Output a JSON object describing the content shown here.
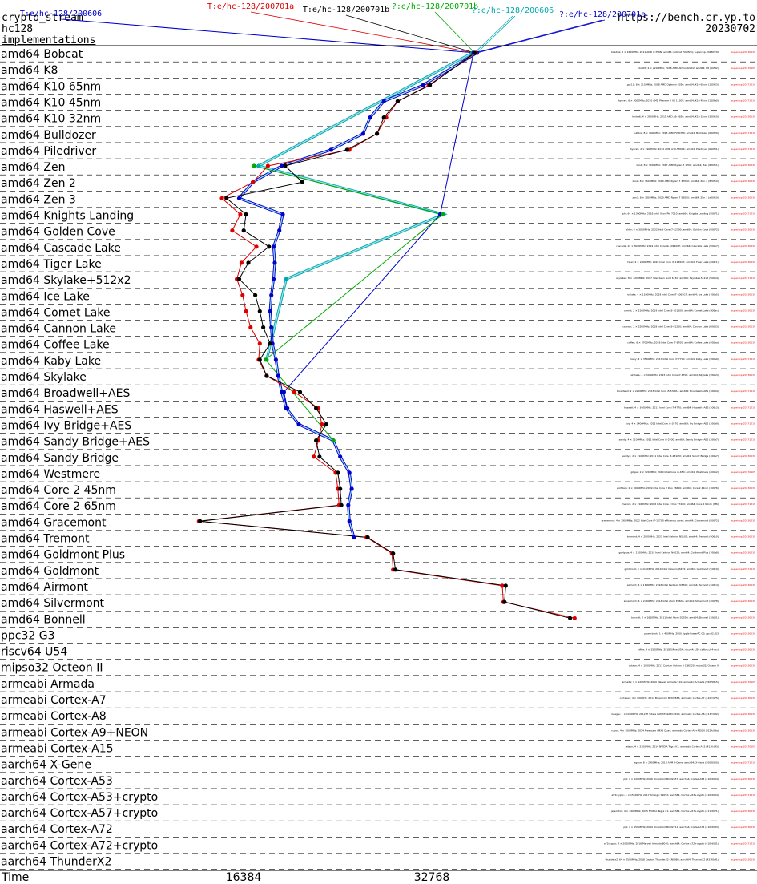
{
  "header": {
    "primitive": "crypto_stream",
    "algorithm": "hc128",
    "section": "implementations",
    "site": "https://bench.cr.yp.to",
    "date": "20230702"
  },
  "implementations": [
    {
      "label": "T:e/hc-128/200606",
      "color": "#0000cc"
    },
    {
      "label": "T:e/hc-128/200701a",
      "color": "#dd0000"
    },
    {
      "label": "T:e/hc-128/200701b",
      "color": "#000000"
    },
    {
      "label": "?:e/hc-128/200701b",
      "color": "#00aa00"
    },
    {
      "label": "?:e/hc-128/200606",
      "color": "#00aaaa"
    },
    {
      "label": "?:e/hc-128/200701a",
      "color": "#0000cc"
    }
  ],
  "axis": {
    "xlabel": "Time",
    "ticks": [
      "16384",
      "32768"
    ]
  },
  "chart_data": {
    "type": "line",
    "xlabel": "Time",
    "xticks": [
      16384,
      32768
    ],
    "categories": [
      "amd64 Bobcat",
      "amd64 K8",
      "amd64 K10 65nm",
      "amd64 K10 45nm",
      "amd64 K10 32nm",
      "amd64 Bulldozer",
      "amd64 Piledriver",
      "amd64 Zen",
      "amd64 Zen 2",
      "amd64 Zen 3",
      "amd64 Knights Landing",
      "amd64 Golden Cove",
      "amd64 Cascade Lake",
      "amd64 Tiger Lake",
      "amd64 Skylake+512x2",
      "amd64 Ice Lake",
      "amd64 Comet Lake",
      "amd64 Cannon Lake",
      "amd64 Coffee Lake",
      "amd64 Kaby Lake",
      "amd64 Skylake",
      "amd64 Broadwell+AES",
      "amd64 Haswell+AES",
      "amd64 Ivy Bridge+AES",
      "amd64 Sandy Bridge+AES",
      "amd64 Sandy Bridge",
      "amd64 Westmere",
      "amd64 Core 2 45nm",
      "amd64 Core 2 65nm",
      "amd64 Gracemont",
      "amd64 Tremont",
      "amd64 Goldmont Plus",
      "amd64 Goldmont",
      "amd64 Airmont",
      "amd64 Silvermont",
      "amd64 Bonnell",
      "ppc32 G3",
      "riscv64 U54",
      "mipso32 Octeon II",
      "armeabi Armada",
      "armeabi Cortex-A7",
      "armeabi Cortex-A8",
      "armeabi Cortex-A9+NEON",
      "armeabi Cortex-A15",
      "aarch64 X-Gene",
      "aarch64 Cortex-A53",
      "aarch64 Cortex-A53+crypto",
      "aarch64 Cortex-A57+crypto",
      "aarch64 Cortex-A72",
      "aarch64 Cortex-A72+crypto",
      "aarch64 ThunderX2"
    ],
    "series": [
      {
        "name": "T:e/hc-128/200606",
        "color": "#0000cc",
        "points": [
          [
            0,
            36700
          ],
          [
            2,
            32000
          ],
          [
            3,
            28600
          ],
          [
            4,
            27400
          ],
          [
            5,
            26800
          ],
          [
            6,
            24000
          ],
          [
            7,
            19700
          ],
          [
            8,
            17200
          ],
          [
            9,
            16000
          ],
          [
            10,
            19800
          ],
          [
            11,
            19500
          ],
          [
            12,
            19000
          ],
          [
            13,
            19100
          ],
          [
            14,
            19000
          ],
          [
            15,
            18800
          ],
          [
            16,
            18700
          ],
          [
            17,
            18800
          ],
          [
            18,
            18900
          ],
          [
            19,
            19200
          ],
          [
            20,
            19400
          ],
          [
            21,
            19700
          ],
          [
            22,
            20100
          ],
          [
            23,
            21200
          ],
          [
            24,
            24200
          ],
          [
            25,
            24800
          ],
          [
            26,
            25600
          ],
          [
            27,
            25800
          ],
          [
            28,
            25500
          ],
          [
            29,
            25600
          ],
          [
            30,
            26000
          ]
        ]
      },
      {
        "name": "T:e/hc-128/200701a",
        "color": "#dd0000",
        "points": [
          [
            0,
            36600
          ],
          [
            2,
            32500
          ],
          [
            3,
            29800
          ],
          [
            4,
            28800
          ],
          [
            5,
            28000
          ],
          [
            6,
            25600
          ],
          [
            7,
            18500
          ],
          [
            8,
            17200
          ],
          [
            9,
            14500
          ],
          [
            10,
            16100
          ],
          [
            11,
            15400
          ],
          [
            12,
            17500
          ],
          [
            13,
            16200
          ],
          [
            14,
            15800
          ],
          [
            15,
            16300
          ],
          [
            16,
            16600
          ],
          [
            17,
            17000
          ],
          [
            18,
            17800
          ],
          [
            19,
            17700
          ],
          [
            20,
            18400
          ],
          [
            21,
            20800
          ],
          [
            22,
            22900
          ],
          [
            23,
            23200
          ],
          [
            24,
            22900
          ],
          [
            25,
            22500
          ],
          [
            26,
            24400
          ],
          [
            27,
            24600
          ],
          [
            28,
            24700
          ],
          [
            29,
            12500
          ],
          [
            30,
            27100
          ],
          [
            31,
            29300
          ],
          [
            32,
            29400
          ],
          [
            33,
            38900
          ],
          [
            34,
            39000
          ],
          [
            35,
            45200
          ]
        ]
      },
      {
        "name": "T:e/hc-128/200701b",
        "color": "#000000",
        "points": [
          [
            0,
            36500
          ],
          [
            2,
            32600
          ],
          [
            3,
            29800
          ],
          [
            4,
            28600
          ],
          [
            5,
            28000
          ],
          [
            6,
            25400
          ],
          [
            7,
            20000
          ],
          [
            8,
            21500
          ],
          [
            9,
            14900
          ],
          [
            10,
            16600
          ],
          [
            11,
            16400
          ],
          [
            12,
            18600
          ],
          [
            13,
            16800
          ],
          [
            14,
            16000
          ],
          [
            15,
            17400
          ],
          [
            16,
            17800
          ],
          [
            17,
            18100
          ],
          [
            18,
            18700
          ],
          [
            19,
            17800
          ],
          [
            20,
            18400
          ],
          [
            21,
            21300
          ],
          [
            22,
            22700
          ],
          [
            23,
            23600
          ],
          [
            24,
            22700
          ],
          [
            25,
            23000
          ],
          [
            26,
            24600
          ],
          [
            27,
            24800
          ],
          [
            28,
            24900
          ],
          [
            29,
            12600
          ],
          [
            30,
            27200
          ],
          [
            31,
            29400
          ],
          [
            32,
            29600
          ],
          [
            33,
            39200
          ],
          [
            34,
            39100
          ],
          [
            35,
            44800
          ]
        ]
      },
      {
        "name": "?:e/hc-128/200701b",
        "color": "#00aa00",
        "points": [
          [
            7,
            17300
          ],
          [
            10,
            33700
          ],
          [
            19,
            18300
          ],
          [
            24,
            24200
          ]
        ]
      },
      {
        "name": "?:e/hc-128/200606",
        "color": "#00aaaa",
        "points": [
          [
            0,
            36300
          ],
          [
            7,
            17700
          ],
          [
            10,
            33800
          ],
          [
            14,
            20100
          ],
          [
            19,
            18400
          ]
        ]
      },
      {
        "name": "?:e/hc-128/200701a",
        "color": "#0000cc",
        "points": [
          [
            0,
            36400
          ],
          [
            10,
            33500
          ],
          [
            21,
            19900
          ],
          [
            22,
            20200
          ]
        ]
      }
    ]
  },
  "machines": [
    {
      "text": "bllsdisk; 2 × 1600MHz; 2011 AMD G-T56N; amd64; Bobcat (500f20); supercop-20230530",
      "date": "supercop-20230530"
    },
    {
      "text": "nbi403; 2 × 2200MHz; 2008 AMD Athlon 64 X2; amd64; K8 (60f82)",
      "date": "supercop-20170105"
    },
    {
      "text": "gcc10; 8 × 2100MHz; 2008 AMD Opteron 8356; amd64; K10 65nm (100f23)",
      "date": "supercop-20171218"
    },
    {
      "text": "hydra4; 6 × 3000MHz; 2010 AMD Phenom II X6 1100T; amd64; K10 45nm (100fa0)",
      "date": "supercop-20171218"
    },
    {
      "text": "hydra6; 4 × 2600MHz; 2011 AMD A6-3650; amd64; K10 32nm (300f10)",
      "date": "supercop-20230530"
    },
    {
      "text": "bulldoz; 8 × 4000MHz; 2013 AMD FX-8350; amd64; Bulldozer (600f20)",
      "date": "supercop-20171218"
    },
    {
      "text": "hydra8; 2 × 3900MHz; 2012 AMD A10-5800K; amd64; Piledriver (610f01)",
      "date": "supercop-20171218"
    },
    {
      "text": "zen1; 8 × 3000MHz; 2017 AMD Ryzen 7 1700; amd64; Zen (800f11)",
      "date": "supercop-20230530"
    },
    {
      "text": "zen2; 8 × 3600MHz; 2019 AMD Ryzen 7 3700X; amd64; Zen 2 (870f10)",
      "date": "supercop-20230530"
    },
    {
      "text": "zen3; 8 × 3800MHz; 2020 AMD Ryzen 7 5800X; amd64; Zen 3 (a20f10)",
      "date": "supercop-20230530"
    },
    {
      "text": "phi; 64 × 1300MHz; 2016 Intel Xeon Phi 7210; amd64; Knights Landing (50671)",
      "date": "supercop-20171218"
    },
    {
      "text": "alder; 4 × 3000MHz; 2022 Intel Core i7-12700; amd64; Golden Cove (90672)",
      "date": "supercop-20230530"
    },
    {
      "text": "cascade; 18 × 3000MHz; 2019 Intel Core i9-10980XE; amd64; Cascade Lake (50657)",
      "date": "supercop-20230530"
    },
    {
      "text": "tiger; 4 × 2800MHz; 2020 Intel Core i7-1165G7; amd64; Tiger Lake (806c1)",
      "date": "supercop-20230530"
    },
    {
      "text": "skylakex; 8 × 3200MHz; 2017 Intel Xeon Gold 6130; amd64; Skylake+512x2 (50654)",
      "date": "supercop-20171218"
    },
    {
      "text": "icelake; 4 × 1100MHz; 2019 Intel Core i7-1065G7; amd64; Ice Lake (706e5)",
      "date": "supercop-20230530"
    },
    {
      "text": "comet; 2 × 2100MHz; 2019 Intel Core i3-10110U; amd64; Comet Lake (806ec)",
      "date": "supercop-20230530"
    },
    {
      "text": "cannon; 2 × 2200MHz; 2018 Intel Core i3-8121U; amd64; Cannon Lake (60663)",
      "date": "supercop-20230530"
    },
    {
      "text": "coffee; 6 × 3700MHz; 2018 Intel Core i7-8700; amd64; Coffee Lake (906ea)",
      "date": "supercop-20230530"
    },
    {
      "text": "kaby; 4 × 3500MHz; 2017 Intel Core i7-7700; amd64; Kaby Lake (906e9)",
      "date": "supercop-20171218"
    },
    {
      "text": "skylake; 4 × 3400MHz; 2015 Intel Core i7-6700; amd64; Skylake (506e3)",
      "date": "supercop-20230530"
    },
    {
      "text": "broadwell; 2 × 2200MHz; 2015 Intel Core i5-5300U; amd64; Broadwell+AES (306d4)",
      "date": "supercop-20171218"
    },
    {
      "text": "haswell; 4 × 3400MHz; 2013 Intel Core i7-4770; amd64; Haswell+AES (306c3)",
      "date": "supercop-20171218"
    },
    {
      "text": "ivy; 4 × 3400MHz; 2012 Intel Core i5-3570; amd64; Ivy Bridge+AES (306a9)",
      "date": "supercop-20171218"
    },
    {
      "text": "sandy; 4 × 3100MHz; 2011 Intel Core i5-2400; amd64; Sandy Bridge+AES (206a7)",
      "date": "supercop-20171218"
    },
    {
      "text": "sandy2; 2 × 2100MHz; 2011 Intel Core i3-2310M; amd64; Sandy Bridge (206a7)",
      "date": "supercop-20230530"
    },
    {
      "text": "gilgax; 2 × 3200MHz; 2010 Intel Core i5-650; amd64; Westmere (20652)",
      "date": "supercop-20170105"
    },
    {
      "text": "wolfdale; 2 × 3000MHz; 2009 Intel Core 2 Duo E8400; amd64; Core 2 45nm (10676)",
      "date": "supercop-20230530"
    },
    {
      "text": "merom; 2 × 2160MHz; 2006 Intel Core 2 Duo T7400; amd64; Core 2 65nm (6f6)",
      "date": "supercop-20171218"
    },
    {
      "text": "gracemont; 4 × 1900MHz; 2022 Intel Core i7-12700 efficiency cores; amd64; Gracemont (90672)",
      "date": "supercop-20230530"
    },
    {
      "text": "tremont; 4 × 2000MHz; 2021 Intel Celeron N5105; amd64; Tremont (906c0)",
      "date": "supercop-20230530"
    },
    {
      "text": "goldplus; 4 × 1100MHz; 2019 Intel Celeron N4020; amd64; Goldmont Plus (706a8)",
      "date": "supercop-20230530"
    },
    {
      "text": "goldmont; 4 × 1100MHz; 2016 Intel Celeron J3455; amd64; Goldmont (506c9)",
      "date": "supercop-20171218"
    },
    {
      "text": "airmont; 4 × 1600MHz; 2016 Intel Pentium N3700; amd64; Airmont (406c4)",
      "date": "supercop-20230530"
    },
    {
      "text": "silvermont; 4 × 2400MHz; 2014 Intel Atom E3845; amd64; Silvermont (30678)",
      "date": "supercop-20230530"
    },
    {
      "text": "bonnell; 2 × 1660MHz; 2011 Intel Atom D2550; amd64; Bonnell (30661)",
      "date": "supercop-20230530"
    },
    {
      "text": "powerbook; 1 × 400MHz; 2000 Apple PowerPC G3; ppc32; G3",
      "date": "supercop-20230530"
    },
    {
      "text": "hifive; 4 × 1500MHz; 2018 SiFive U54; riscv64; U54 (sifive,u54-mc)",
      "date": "supercop-20230530"
    },
    {
      "text": "octeon; 4 × 1000MHz; 2011 Cavium Octeon II CN6120; mipso32; Octeon II",
      "date": "supercop-20230530"
    },
    {
      "text": "armada; 1 × 1200MHz; 2010 Marvell Armada 510; armeabi; Armada (560f5815)",
      "date": "supercop-20170105"
    },
    {
      "text": "cortexa7; 4 × 900MHz; 2014 Broadcom BCM2836; armeabi; Cortex-A7 (410fc075)",
      "date": "supercop-20230530"
    },
    {
      "text": "beagle; 1 × 1000MHz; 2012 TI Sitara XAM3359AZCZ100; armeabi; Cortex-A8 (413fc082)",
      "date": "supercop-20230530"
    },
    {
      "text": "cubox; 4 × 1000MHz; 2014 Freescale i.MX6 Quad; armeabi; Cortex-A9+NEON (412fc09a)",
      "date": "supercop-20230530"
    },
    {
      "text": "jetson; 4 × 2300MHz; 2014 NVIDIA Tegra K1; armeabi; Cortex-A15 (412fc0f3)",
      "date": "supercop-20170105"
    },
    {
      "text": "xgene; 8 × 2400MHz; 2013 APM X-Gene; aarch64; X-Gene (500f0000)",
      "date": "supercop-20171218"
    },
    {
      "text": "pi3; 4 × 1200MHz; 2016 Broadcom BCM2837; aarch64; Cortex-A53 (410fd034)",
      "date": "supercop-20230530"
    },
    {
      "text": "a53crypto; 4 × 1500MHz; 2017 Amlogic S905X; aarch64; Cortex-A53+crypto (410fd034)",
      "date": "supercop-20171218"
    },
    {
      "text": "jetsontx1; 4 × 1900MHz; 2015 NVIDIA Tegra X1; aarch64; Cortex-A57+crypto (411fd071)",
      "date": "supercop-20230530"
    },
    {
      "text": "pi4; 4 × 1500MHz; 2019 Broadcom BCM2711; aarch64; Cortex-A72 (410fd083)",
      "date": "supercop-20230530"
    },
    {
      "text": "a72crypto; 4 × 2000MHz; 2016 Marvell Armada 8040; aarch64; Cortex-A72+crypto (410fd081)",
      "date": "supercop-20171218"
    },
    {
      "text": "thunderx2; 64 × 2500MHz; 2018 Cavium ThunderX2 CN9980; aarch64; ThunderX2 (431f0af1)",
      "date": "supercop-20230530"
    }
  ]
}
